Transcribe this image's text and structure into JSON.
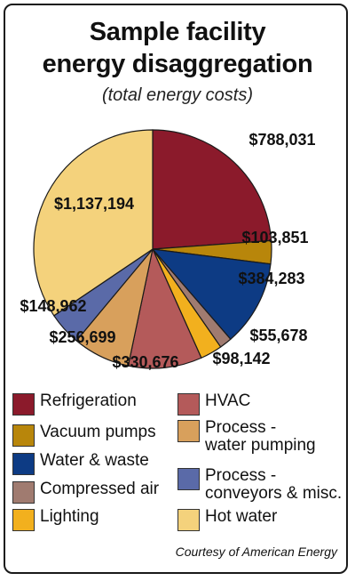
{
  "title_line1": "Sample facility",
  "title_line2": "energy disaggregation",
  "subtitle": "(total energy costs)",
  "credit": "Courtesy of American Energy",
  "chart_data": {
    "type": "pie",
    "title": "Sample facility energy disaggregation",
    "subtitle": "(total energy costs)",
    "slices": [
      {
        "label": "Refrigeration",
        "value": 788031,
        "display": "$788,031",
        "color": "#8b1a2b"
      },
      {
        "label": "Vacuum pumps",
        "value": 103851,
        "display": "$103,851",
        "color": "#b8860b"
      },
      {
        "label": "Water & waste",
        "value": 384283,
        "display": "$384,283",
        "color": "#0d3b84"
      },
      {
        "label": "Compressed air",
        "value": 55678,
        "display": "$55,678",
        "color": "#a07b70"
      },
      {
        "label": "Lighting",
        "value": 98142,
        "display": "$98,142",
        "color": "#f2b01e"
      },
      {
        "label": "HVAC",
        "value": 330676,
        "display": "$330,676",
        "color": "#b45a5a"
      },
      {
        "label": "Process - water pumping",
        "value": 256699,
        "display": "$256,699",
        "color": "#d8a05c"
      },
      {
        "label": "Process - conveyors & misc.",
        "value": 148962,
        "display": "$148,962",
        "color": "#5a6aa8"
      },
      {
        "label": "Hot water",
        "value": 1137194,
        "display": "$1,137,194",
        "color": "#f4d27c"
      }
    ],
    "legend_position": "bottom"
  },
  "legend": [
    {
      "label": "Refrigeration",
      "color": "#8b1a2b"
    },
    {
      "label": "Vacuum pumps",
      "color": "#b8860b"
    },
    {
      "label": "Water & waste",
      "color": "#0d3b84"
    },
    {
      "label": "Compressed air",
      "color": "#a07b70"
    },
    {
      "label": "Lighting",
      "color": "#f2b01e"
    },
    {
      "label": "HVAC",
      "color": "#b45a5a"
    },
    {
      "label": "Process -\nwater pumping",
      "color": "#d8a05c"
    },
    {
      "label": "Process -\nconveyors & misc.",
      "color": "#5a6aa8"
    },
    {
      "label": "Hot water",
      "color": "#f4d27c"
    }
  ]
}
